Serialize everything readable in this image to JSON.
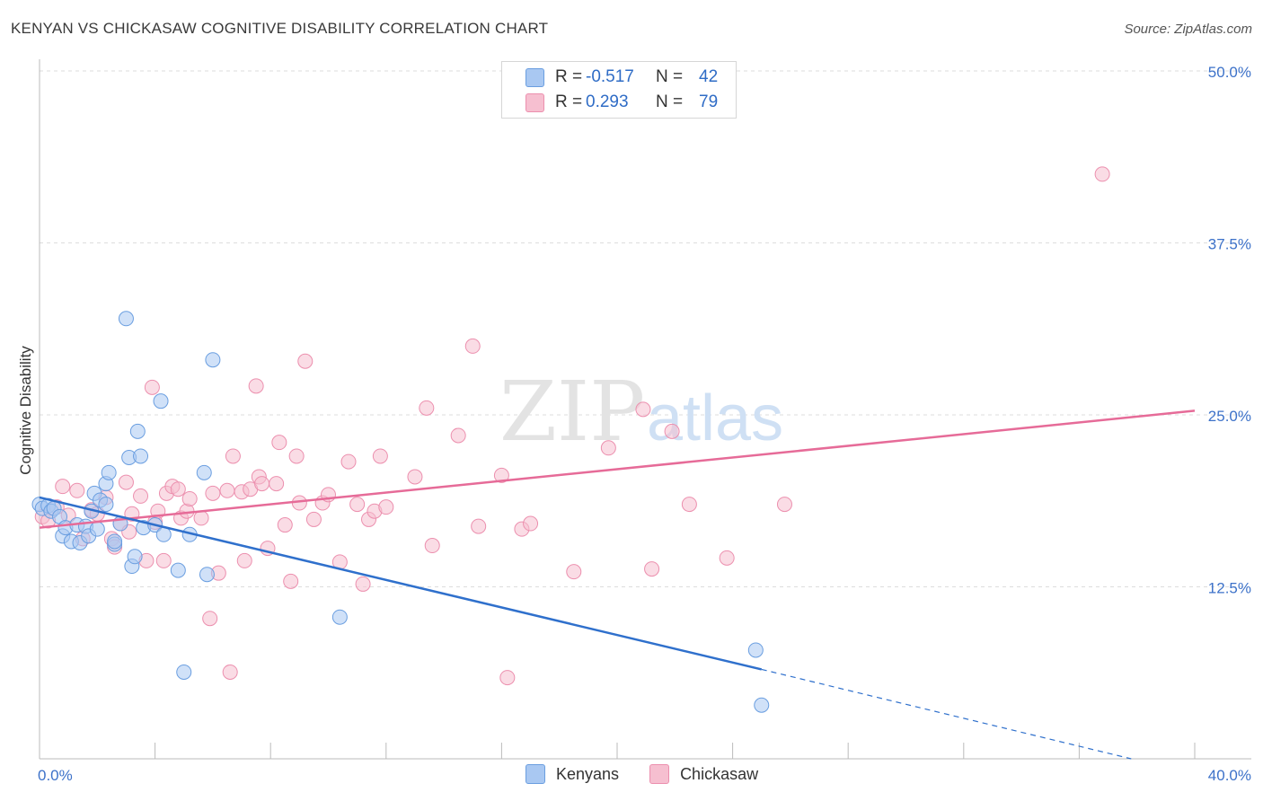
{
  "header": {
    "title": "KENYAN VS CHICKASAW COGNITIVE DISABILITY CORRELATION CHART",
    "source": "Source: ZipAtlas.com"
  },
  "legend_top": {
    "rows": [
      {
        "r_label": "R =",
        "r_value": "-0.517",
        "n_label": "N =",
        "n_value": "42"
      },
      {
        "r_label": "R =",
        "r_value": "0.293",
        "n_label": "N =",
        "n_value": "79"
      }
    ]
  },
  "legend_bottom": {
    "items": [
      "Kenyans",
      "Chickasaw"
    ]
  },
  "watermark": {
    "zip": "ZIP",
    "atlas": "atlas"
  },
  "colors": {
    "kenyans_fill": "#a9c8f2",
    "kenyans_stroke": "#6a9ee0",
    "kenyans_line": "#2f70cc",
    "chickasaw_fill": "#f6bfd0",
    "chickasaw_stroke": "#ec8fae",
    "chickasaw_line": "#e66b98",
    "tick_label": "#3d72c9",
    "grid": "#dddddd"
  },
  "chart_data": {
    "type": "scatter",
    "title": "KENYAN VS CHICKASAW COGNITIVE DISABILITY CORRELATION CHART",
    "xlabel": "",
    "ylabel": "Cognitive Disability",
    "xlim": [
      0,
      40
    ],
    "ylim": [
      0,
      50
    ],
    "x_tick_labels": [
      "0.0%",
      "40.0%"
    ],
    "y_ticks": [
      12.5,
      25.0,
      37.5,
      50.0
    ],
    "y_tick_labels": [
      "12.5%",
      "25.0%",
      "37.5%",
      "50.0%"
    ],
    "grid": true,
    "legend_position": "top-center",
    "series": [
      {
        "name": "Kenyans",
        "r": -0.517,
        "n": 42,
        "trend": {
          "x0": 0,
          "y0": 19.0,
          "x1": 25.0,
          "y1": 6.5,
          "dash_to_x": 37.8,
          "dash_to_y": 0.0
        },
        "points": [
          [
            0.0,
            18.5
          ],
          [
            0.1,
            18.2
          ],
          [
            0.3,
            18.4
          ],
          [
            0.4,
            18.0
          ],
          [
            0.5,
            18.2
          ],
          [
            0.7,
            17.6
          ],
          [
            0.8,
            16.2
          ],
          [
            0.9,
            16.8
          ],
          [
            1.1,
            15.8
          ],
          [
            1.3,
            17.0
          ],
          [
            1.4,
            15.7
          ],
          [
            1.6,
            16.9
          ],
          [
            1.7,
            16.2
          ],
          [
            1.8,
            18.0
          ],
          [
            1.9,
            19.3
          ],
          [
            2.0,
            16.7
          ],
          [
            2.1,
            18.8
          ],
          [
            2.3,
            18.5
          ],
          [
            2.3,
            20.0
          ],
          [
            2.4,
            20.8
          ],
          [
            2.6,
            15.6
          ],
          [
            2.8,
            17.1
          ],
          [
            3.0,
            32.0
          ],
          [
            3.1,
            21.9
          ],
          [
            3.2,
            14.0
          ],
          [
            3.3,
            14.7
          ],
          [
            3.4,
            23.8
          ],
          [
            3.5,
            22.0
          ],
          [
            3.6,
            16.8
          ],
          [
            4.0,
            17.0
          ],
          [
            4.2,
            26.0
          ],
          [
            4.3,
            16.3
          ],
          [
            4.8,
            13.7
          ],
          [
            5.0,
            6.3
          ],
          [
            5.2,
            16.3
          ],
          [
            5.7,
            20.8
          ],
          [
            5.8,
            13.4
          ],
          [
            6.0,
            29.0
          ],
          [
            10.4,
            10.3
          ],
          [
            24.8,
            7.9
          ],
          [
            25.0,
            3.9
          ],
          [
            2.6,
            15.8
          ]
        ]
      },
      {
        "name": "Chickasaw",
        "r": 0.293,
        "n": 79,
        "trend": {
          "x0": 0,
          "y0": 16.8,
          "x1": 40,
          "y1": 25.3
        },
        "points": [
          [
            0.1,
            17.6
          ],
          [
            0.3,
            17.3
          ],
          [
            0.6,
            18.3
          ],
          [
            0.8,
            19.8
          ],
          [
            1.0,
            17.7
          ],
          [
            1.3,
            19.5
          ],
          [
            1.5,
            16.0
          ],
          [
            1.8,
            18.1
          ],
          [
            2.0,
            17.8
          ],
          [
            2.3,
            19.0
          ],
          [
            2.5,
            16.0
          ],
          [
            2.6,
            15.4
          ],
          [
            2.8,
            17.1
          ],
          [
            3.0,
            20.1
          ],
          [
            3.1,
            16.5
          ],
          [
            3.2,
            17.8
          ],
          [
            3.5,
            19.1
          ],
          [
            3.7,
            14.4
          ],
          [
            3.9,
            27.0
          ],
          [
            4.0,
            17.2
          ],
          [
            4.1,
            18.0
          ],
          [
            4.3,
            14.4
          ],
          [
            4.4,
            19.3
          ],
          [
            4.6,
            19.8
          ],
          [
            4.8,
            19.6
          ],
          [
            4.9,
            17.5
          ],
          [
            5.1,
            18.0
          ],
          [
            5.2,
            18.9
          ],
          [
            5.6,
            17.5
          ],
          [
            5.9,
            10.2
          ],
          [
            6.0,
            19.3
          ],
          [
            6.2,
            13.5
          ],
          [
            6.5,
            19.5
          ],
          [
            6.6,
            6.3
          ],
          [
            6.7,
            22.0
          ],
          [
            7.0,
            19.4
          ],
          [
            7.1,
            14.4
          ],
          [
            7.3,
            19.6
          ],
          [
            7.5,
            27.1
          ],
          [
            7.6,
            20.5
          ],
          [
            7.7,
            20.0
          ],
          [
            7.9,
            15.3
          ],
          [
            8.2,
            20.0
          ],
          [
            8.3,
            23.0
          ],
          [
            8.5,
            17.0
          ],
          [
            8.7,
            12.9
          ],
          [
            8.9,
            22.0
          ],
          [
            9.0,
            18.6
          ],
          [
            9.2,
            28.9
          ],
          [
            9.5,
            17.4
          ],
          [
            9.8,
            18.6
          ],
          [
            10.0,
            19.2
          ],
          [
            10.4,
            14.3
          ],
          [
            10.7,
            21.6
          ],
          [
            11.0,
            18.5
          ],
          [
            11.2,
            12.7
          ],
          [
            11.4,
            17.4
          ],
          [
            11.6,
            18.0
          ],
          [
            11.8,
            22.0
          ],
          [
            12.0,
            18.3
          ],
          [
            13.0,
            20.5
          ],
          [
            13.4,
            25.5
          ],
          [
            13.6,
            15.5
          ],
          [
            14.5,
            23.5
          ],
          [
            15.0,
            30.0
          ],
          [
            15.2,
            16.9
          ],
          [
            16.0,
            20.6
          ],
          [
            16.2,
            5.9
          ],
          [
            16.7,
            16.7
          ],
          [
            17.0,
            17.1
          ],
          [
            18.5,
            13.6
          ],
          [
            20.9,
            25.4
          ],
          [
            21.2,
            13.8
          ],
          [
            21.9,
            23.8
          ],
          [
            22.5,
            18.5
          ],
          [
            23.8,
            14.6
          ],
          [
            25.8,
            18.5
          ],
          [
            36.8,
            42.5
          ],
          [
            19.7,
            22.6
          ]
        ]
      }
    ]
  }
}
